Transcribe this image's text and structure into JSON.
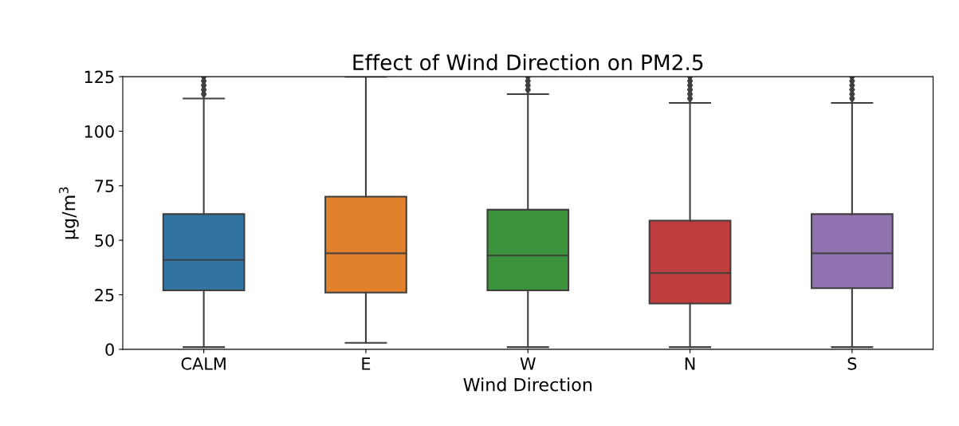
{
  "chart_data": {
    "type": "box",
    "title": "Effect of Wind Direction on PM2.5",
    "xlabel": "Wind Direction",
    "ylabel": "μg/m$^{3}$",
    "categories": [
      "CALM",
      "E",
      "W",
      "N",
      "S"
    ],
    "colors": [
      "#3274a1",
      "#e1812c",
      "#3a923a",
      "#c03d3e",
      "#9372b2"
    ],
    "boxes": [
      {
        "low": 1,
        "q1": 27,
        "median": 41,
        "q3": 62,
        "high": 115,
        "outliers": [
          117,
          119,
          121,
          123,
          125
        ]
      },
      {
        "low": 3,
        "q1": 26,
        "median": 44,
        "q3": 70,
        "high": 125
      },
      {
        "low": 1,
        "q1": 27,
        "median": 43,
        "q3": 64,
        "high": 117,
        "outliers": [
          119,
          121,
          123,
          125
        ]
      },
      {
        "low": 1,
        "q1": 21,
        "median": 35,
        "q3": 59,
        "high": 113,
        "outliers": [
          115,
          117,
          119,
          121,
          123,
          125
        ]
      },
      {
        "low": 1,
        "q1": 28,
        "median": 44,
        "q3": 62,
        "high": 113,
        "outliers": [
          115,
          117,
          119,
          121,
          123,
          125
        ]
      }
    ],
    "ylim": [
      0,
      125
    ],
    "yticks": [
      0,
      25,
      50,
      75,
      100,
      125
    ],
    "grid": false,
    "legend": false
  }
}
